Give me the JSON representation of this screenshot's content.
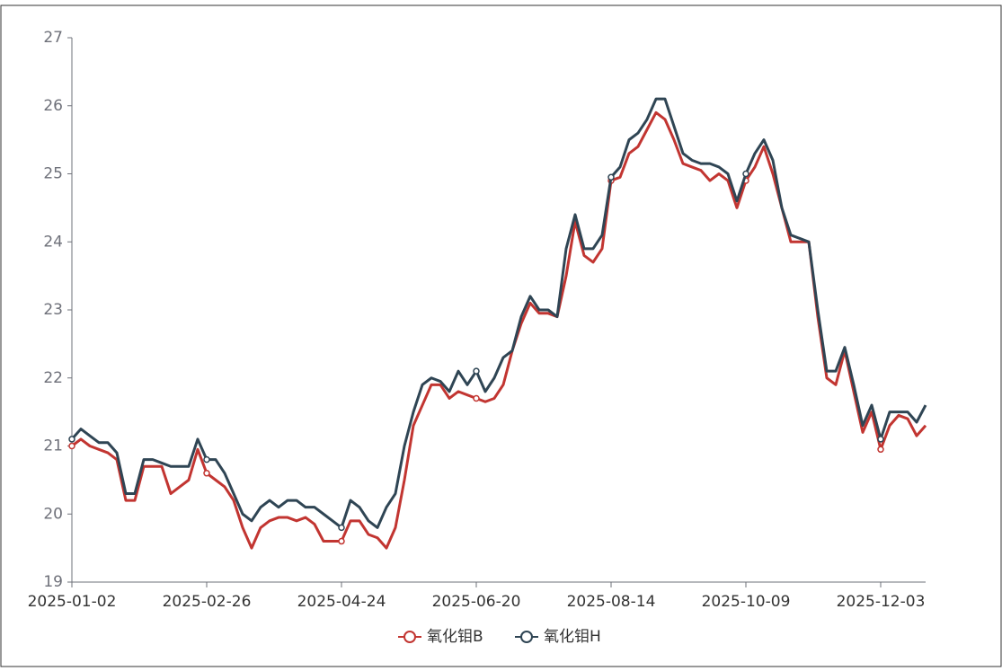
{
  "chart_data": {
    "type": "line",
    "categories": [
      "2025-01-02",
      null,
      null,
      null,
      null,
      null,
      null,
      null,
      null,
      null,
      null,
      null,
      null,
      null,
      null,
      "2025-02-26",
      null,
      null,
      null,
      null,
      null,
      null,
      null,
      null,
      null,
      null,
      null,
      null,
      null,
      null,
      "2025-04-24",
      null,
      null,
      null,
      null,
      null,
      null,
      null,
      null,
      null,
      null,
      null,
      null,
      null,
      null,
      "2025-06-20",
      null,
      null,
      null,
      null,
      null,
      null,
      null,
      null,
      null,
      null,
      null,
      null,
      null,
      null,
      "2025-08-14",
      null,
      null,
      null,
      null,
      null,
      null,
      null,
      null,
      null,
      null,
      null,
      null,
      null,
      null,
      "2025-10-09",
      null,
      null,
      null,
      null,
      null,
      null,
      null,
      null,
      null,
      null,
      null,
      null,
      null,
      null,
      "2025-12-03",
      null,
      null,
      null,
      null,
      null
    ],
    "series": [
      {
        "name": "氧化钼B",
        "color": "#c23531",
        "values": [
          21.0,
          21.1,
          21.0,
          20.95,
          20.9,
          20.8,
          20.2,
          20.2,
          20.7,
          20.7,
          20.7,
          20.3,
          20.4,
          20.5,
          20.95,
          20.6,
          20.5,
          20.4,
          20.2,
          19.8,
          19.5,
          19.8,
          19.9,
          19.95,
          19.95,
          19.9,
          19.95,
          19.85,
          19.6,
          19.6,
          19.6,
          19.9,
          19.9,
          19.7,
          19.65,
          19.5,
          19.8,
          20.5,
          21.3,
          21.6,
          21.9,
          21.9,
          21.7,
          21.8,
          21.75,
          21.7,
          21.65,
          21.7,
          21.9,
          22.4,
          22.8,
          23.1,
          22.95,
          22.95,
          22.9,
          23.5,
          24.3,
          23.8,
          23.7,
          23.9,
          24.9,
          24.95,
          25.3,
          25.4,
          25.65,
          25.9,
          25.8,
          25.5,
          25.15,
          25.1,
          25.05,
          24.9,
          25.0,
          24.9,
          24.5,
          24.9,
          25.1,
          25.4,
          25.0,
          24.5,
          24.0,
          24.0,
          24.0,
          22.9,
          22.0,
          21.9,
          22.4,
          21.8,
          21.2,
          21.5,
          20.95,
          21.3,
          21.45,
          21.4,
          21.15,
          21.3
        ]
      },
      {
        "name": "氧化钼H",
        "color": "#2f4554",
        "values": [
          21.1,
          21.25,
          21.15,
          21.05,
          21.05,
          20.9,
          20.3,
          20.3,
          20.8,
          20.8,
          20.75,
          20.7,
          20.7,
          20.7,
          21.1,
          20.8,
          20.8,
          20.6,
          20.3,
          20.0,
          19.9,
          20.1,
          20.2,
          20.1,
          20.2,
          20.2,
          20.1,
          20.1,
          20.0,
          19.9,
          19.8,
          20.2,
          20.1,
          19.9,
          19.8,
          20.1,
          20.3,
          21.0,
          21.5,
          21.9,
          22.0,
          21.95,
          21.8,
          22.1,
          21.9,
          22.1,
          21.8,
          22.0,
          22.3,
          22.4,
          22.9,
          23.2,
          23.0,
          23.0,
          22.9,
          23.9,
          24.4,
          23.9,
          23.9,
          24.1,
          24.95,
          25.1,
          25.5,
          25.6,
          25.8,
          26.1,
          26.1,
          25.7,
          25.3,
          25.2,
          25.15,
          25.15,
          25.1,
          25.0,
          24.6,
          25.0,
          25.3,
          25.5,
          25.2,
          24.5,
          24.1,
          24.05,
          24.0,
          23.0,
          22.1,
          22.1,
          22.45,
          21.9,
          21.3,
          21.6,
          21.1,
          21.5,
          21.5,
          21.5,
          21.35,
          21.6
        ]
      }
    ],
    "ylim": [
      19,
      27
    ],
    "yticks": [
      19,
      20,
      21,
      22,
      23,
      24,
      25,
      26,
      27
    ],
    "legend": "bottom"
  }
}
